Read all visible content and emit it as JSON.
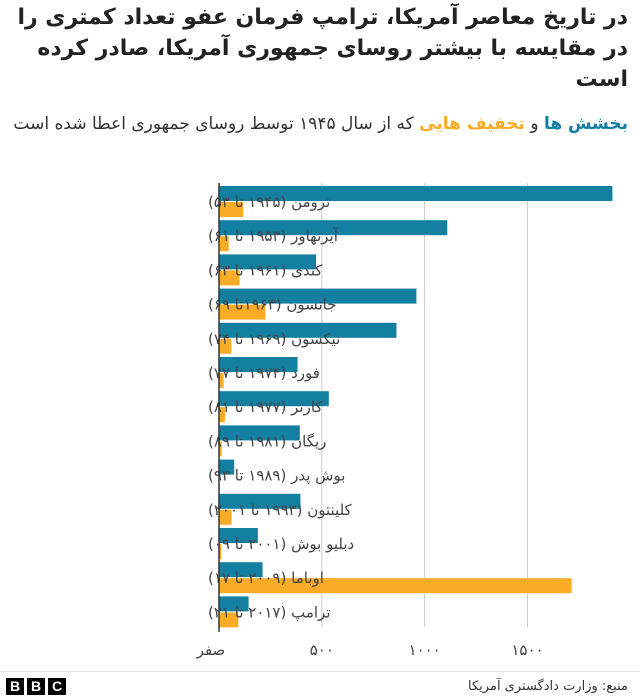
{
  "title": "در تاریخ معاصر آمریکا، ترامپ فرمان عفو تعداد کمتری را در مقایسه با بیشتر روسای جمهوری آمریکا، صادر کرده است",
  "subtitle": {
    "key1": "بخشش ها",
    "connector": "و",
    "key2": "تخفیف هایی",
    "rest": "که از سال ۱۹۴۵ توسط روسای جمهوری اعطا شده است"
  },
  "source": "منبع: وزارت دادگستری آمریکا",
  "logo": [
    "B",
    "B",
    "C"
  ],
  "colors": {
    "pardons": "#1380a1",
    "commutations": "#fcab27",
    "grid": "#cccccc",
    "axis": "#333333"
  },
  "chart_data": {
    "type": "bar",
    "orientation": "horizontal",
    "categories": [
      "ترومن (۱۹۴۵ تا ۵۳)",
      "آیزنهاور (۱۹۵۳ تا ۶۱)",
      "کندی (۱۹۶۱ تا ۶۳)",
      "جانسون (۱۹۶۳تا ۶۹)",
      "نیکسون (۱۹۶۹ تا ۷۴)",
      "فورد (۱۹۷۴ تا ۷۷)",
      "کارتر (۱۹۷۷ تا ۸۱)",
      "ریگان (۱۹۸۱ تا ۸۹)",
      "بوش پدر (۱۹۸۹ تا ۹۳)",
      "کلینتون (۱۹۹۳ تا ۲۰۰۱)",
      "دبلیو بوش (۲۰۰۱ تا ۰۹)",
      "اوباما (۲۰۰۹ تا ۱۷)",
      "ترامپ (۲۰۱۷ تا ۲۱)"
    ],
    "series": [
      {
        "name": "بخشش ها",
        "values": [
          1913,
          1110,
          472,
          960,
          863,
          382,
          534,
          393,
          74,
          396,
          189,
          212,
          144
        ]
      },
      {
        "name": "تخفیف هایی",
        "values": [
          118,
          47,
          100,
          226,
          60,
          22,
          29,
          13,
          3,
          61,
          11,
          1715,
          94
        ]
      }
    ],
    "xlim": [
      0,
      1950
    ],
    "xticks": [
      0,
      500,
      1000,
      1500
    ],
    "xtick_labels": [
      "صفر",
      "۵۰۰",
      "۱۰۰۰",
      "۱۵۰۰"
    ],
    "grid": true
  }
}
